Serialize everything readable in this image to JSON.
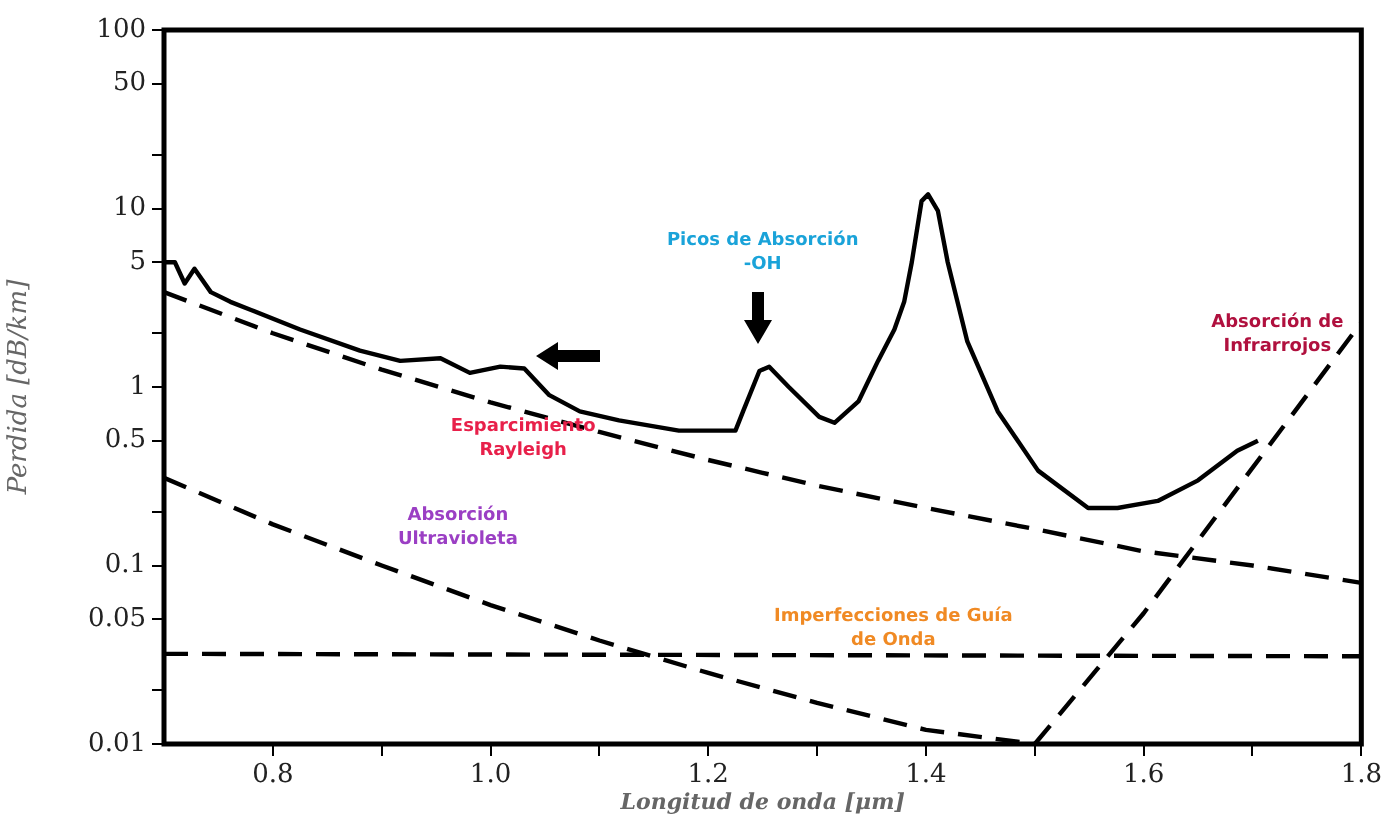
{
  "chart_data": {
    "type": "line",
    "xlabel": "Longitud de onda [μm]",
    "ylabel": "Perdida [dB/km]",
    "xlim": [
      0.7,
      1.8
    ],
    "xticks": [
      {
        "value": 0.8,
        "label": "0.8"
      },
      {
        "value": 0.9,
        "label": null
      },
      {
        "value": 1.0,
        "label": "1.0"
      },
      {
        "value": 1.1,
        "label": null
      },
      {
        "value": 1.2,
        "label": "1.2"
      },
      {
        "value": 1.3,
        "label": null
      },
      {
        "value": 1.4,
        "label": "1.4"
      },
      {
        "value": 1.5,
        "label": null
      },
      {
        "value": 1.6,
        "label": "1.6"
      },
      {
        "value": 1.7,
        "label": null
      },
      {
        "value": 1.8,
        "label": "1.8"
      }
    ],
    "ylim": [
      0.01,
      100
    ],
    "yticks": [
      0.01,
      {
        "value": 0.02,
        "label": null
      },
      0.05,
      0.1,
      {
        "value": 0.2,
        "label": null
      },
      0.5,
      1,
      {
        "value": 2,
        "label": null
      },
      5,
      10,
      {
        "value": 20,
        "label": null
      },
      50,
      100
    ],
    "log": "y",
    "grid": false,
    "legend": false,
    "marker": "none",
    "series": [
      {
        "color": "#000000",
        "line_style": "solid",
        "x": [
          0.701,
          0.71,
          0.719,
          0.728,
          0.743,
          0.761,
          0.78,
          0.825,
          0.88,
          0.917,
          0.954,
          0.981,
          1.009,
          1.031,
          1.054,
          1.082,
          1.118,
          1.173,
          1.225,
          1.232,
          1.247,
          1.256,
          1.274,
          1.302,
          1.316,
          1.338,
          1.356,
          1.371,
          1.38,
          1.387,
          1.396,
          1.402,
          1.411,
          1.42,
          1.438,
          1.466,
          1.503,
          1.549,
          1.576,
          1.613,
          1.65,
          1.686,
          1.705
        ],
        "values": [
          5.0,
          5.0,
          3.8,
          4.6,
          3.4,
          3.0,
          2.7,
          2.1,
          1.6,
          1.4,
          1.45,
          1.2,
          1.3,
          1.27,
          0.9,
          0.73,
          0.65,
          0.57,
          0.57,
          0.73,
          1.23,
          1.3,
          1.0,
          0.68,
          0.63,
          0.83,
          1.4,
          2.1,
          3.0,
          5.0,
          11,
          12,
          9.7,
          5.0,
          1.8,
          0.73,
          0.34,
          0.21,
          0.21,
          0.23,
          0.3,
          0.44,
          0.5
        ]
      },
      {
        "name": "Esparcimiento Rayleigh",
        "color": "#000000",
        "line_style": "dashed",
        "x": [
          0.7,
          0.8,
          0.9,
          1.0,
          1.1,
          1.2,
          1.3,
          1.4,
          1.5,
          1.6,
          1.7,
          1.8
        ],
        "values": [
          3.4,
          2.0,
          1.25,
          0.82,
          0.56,
          0.39,
          0.28,
          0.21,
          0.16,
          0.12,
          0.1,
          0.08
        ]
      },
      {
        "name": "Absorción Ultravioleta",
        "color": "#000000",
        "line_style": "dashed",
        "x": [
          0.7,
          0.8,
          0.9,
          1.0,
          1.1,
          1.2,
          1.3,
          1.4,
          1.5
        ],
        "values": [
          0.31,
          0.17,
          0.1,
          0.06,
          0.038,
          0.025,
          0.017,
          0.012,
          0.01
        ]
      },
      {
        "name": "Imperfecciones de Guía de Onda",
        "color": "#000000",
        "line_style": "dashed",
        "x": [
          0.7,
          1.8
        ],
        "values": [
          0.032,
          0.031
        ]
      },
      {
        "name": "Absorción de Infrarrojos",
        "color": "#000000",
        "line_style": "dashed",
        "x": [
          1.5,
          1.6,
          1.8
        ],
        "values": [
          0.01,
          0.054,
          2.3
        ]
      }
    ],
    "annotations": [
      "Picos de Absorción -OH"
    ]
  }
}
